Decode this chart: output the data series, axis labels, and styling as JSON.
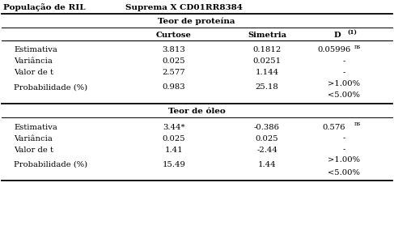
{
  "header_left": "População de RIL",
  "header_right": "Suprema X CD01RR8384",
  "section1_title": "Teor de proteína",
  "section2_title": "Teor de óleo",
  "protein_rows": [
    [
      "Estimativa",
      "3.813",
      "0.1812",
      "0.05996",
      "ns"
    ],
    [
      "Variância",
      "0.025",
      "0.0251",
      "-",
      ""
    ],
    [
      "Valor de t",
      "2.577",
      "1.144",
      "-",
      ""
    ],
    [
      "Probabilidade (%)",
      "0.983",
      "25.18",
      ">1.00%\n<5.00%",
      ""
    ]
  ],
  "oleo_rows": [
    [
      "Estimativa",
      "3.44*",
      "-0.386",
      "0.576",
      "ns"
    ],
    [
      "Variância",
      "0.025",
      "0.025",
      "-",
      ""
    ],
    [
      "Valor de t",
      "1.41",
      "-2.44",
      "-",
      ""
    ],
    [
      "Probabilidade (%)",
      "15.49",
      "1.44",
      ">1.00%\n<5.00%",
      ""
    ]
  ],
  "bg_color": "#ffffff",
  "text_color": "#000000",
  "font_size": 7.2
}
